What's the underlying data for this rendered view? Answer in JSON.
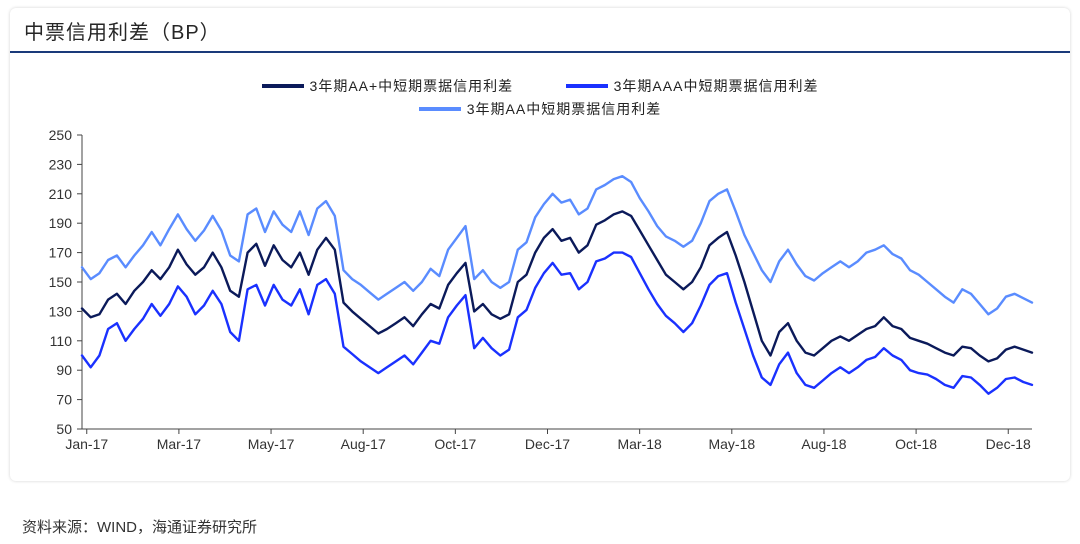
{
  "title": "中票信用利差（BP）",
  "source": "资料来源：WIND，海通证券研究所",
  "chart": {
    "type": "line",
    "background_color": "#ffffff",
    "axis_color": "#444444",
    "label_fontsize": 14,
    "ylim": [
      50,
      250
    ],
    "ytick_step": 20,
    "x_labels": [
      "Jan-17",
      "Mar-17",
      "May-17",
      "Aug-17",
      "Oct-17",
      "Dec-17",
      "Mar-18",
      "May-18",
      "Aug-18",
      "Oct-18",
      "Dec-18"
    ],
    "n_points": 110,
    "line_width": 2.4,
    "series": [
      {
        "name": "3年期AA+中短期票据信用利差",
        "color": "#0b1a5a",
        "values": [
          132,
          126,
          128,
          138,
          142,
          135,
          144,
          150,
          158,
          152,
          160,
          172,
          162,
          155,
          160,
          170,
          160,
          144,
          140,
          170,
          176,
          161,
          175,
          165,
          160,
          170,
          155,
          172,
          180,
          172,
          136,
          130,
          125,
          120,
          115,
          118,
          122,
          126,
          120,
          128,
          135,
          132,
          148,
          156,
          163,
          130,
          135,
          128,
          125,
          128,
          150,
          155,
          170,
          180,
          186,
          178,
          180,
          170,
          175,
          189,
          192,
          196,
          198,
          195,
          185,
          175,
          165,
          155,
          150,
          145,
          150,
          160,
          175,
          180,
          184,
          168,
          150,
          130,
          110,
          100,
          116,
          122,
          110,
          102,
          100,
          105,
          110,
          113,
          110,
          114,
          118,
          120,
          126,
          120,
          118,
          112,
          110,
          108,
          105,
          102,
          100,
          106,
          105,
          100,
          96,
          98,
          104,
          106,
          104,
          102
        ]
      },
      {
        "name": "3年期AAA中短期票据信用利差",
        "color": "#1a31ff",
        "values": [
          100,
          92,
          100,
          118,
          122,
          110,
          118,
          125,
          135,
          127,
          135,
          147,
          140,
          128,
          134,
          144,
          135,
          116,
          110,
          145,
          148,
          134,
          148,
          138,
          134,
          145,
          128,
          148,
          152,
          142,
          106,
          101,
          96,
          92,
          88,
          92,
          96,
          100,
          94,
          102,
          110,
          108,
          126,
          134,
          141,
          105,
          112,
          105,
          100,
          104,
          126,
          131,
          146,
          156,
          163,
          155,
          156,
          145,
          150,
          164,
          166,
          170,
          170,
          167,
          156,
          145,
          135,
          127,
          122,
          116,
          122,
          134,
          148,
          154,
          156,
          136,
          118,
          100,
          85,
          80,
          94,
          102,
          88,
          80,
          78,
          83,
          88,
          92,
          88,
          92,
          97,
          99,
          105,
          100,
          97,
          90,
          88,
          87,
          84,
          80,
          78,
          86,
          85,
          80,
          74,
          78,
          84,
          85,
          82,
          80
        ]
      },
      {
        "name": "3年期AA中短期票据信用利差",
        "color": "#5a8cff",
        "values": [
          160,
          152,
          156,
          165,
          168,
          160,
          168,
          175,
          184,
          175,
          186,
          196,
          186,
          178,
          185,
          195,
          185,
          168,
          164,
          196,
          200,
          184,
          198,
          189,
          184,
          198,
          182,
          200,
          205,
          195,
          158,
          152,
          148,
          143,
          138,
          142,
          146,
          150,
          144,
          150,
          159,
          154,
          172,
          180,
          188,
          152,
          158,
          150,
          146,
          150,
          172,
          177,
          194,
          203,
          210,
          204,
          206,
          196,
          200,
          213,
          216,
          220,
          222,
          218,
          207,
          198,
          188,
          181,
          178,
          174,
          178,
          190,
          205,
          210,
          213,
          198,
          182,
          170,
          158,
          150,
          164,
          172,
          162,
          154,
          151,
          156,
          160,
          164,
          160,
          164,
          170,
          172,
          175,
          169,
          166,
          158,
          155,
          150,
          145,
          140,
          136,
          145,
          142,
          135,
          128,
          132,
          140,
          142,
          139,
          136
        ]
      }
    ]
  }
}
